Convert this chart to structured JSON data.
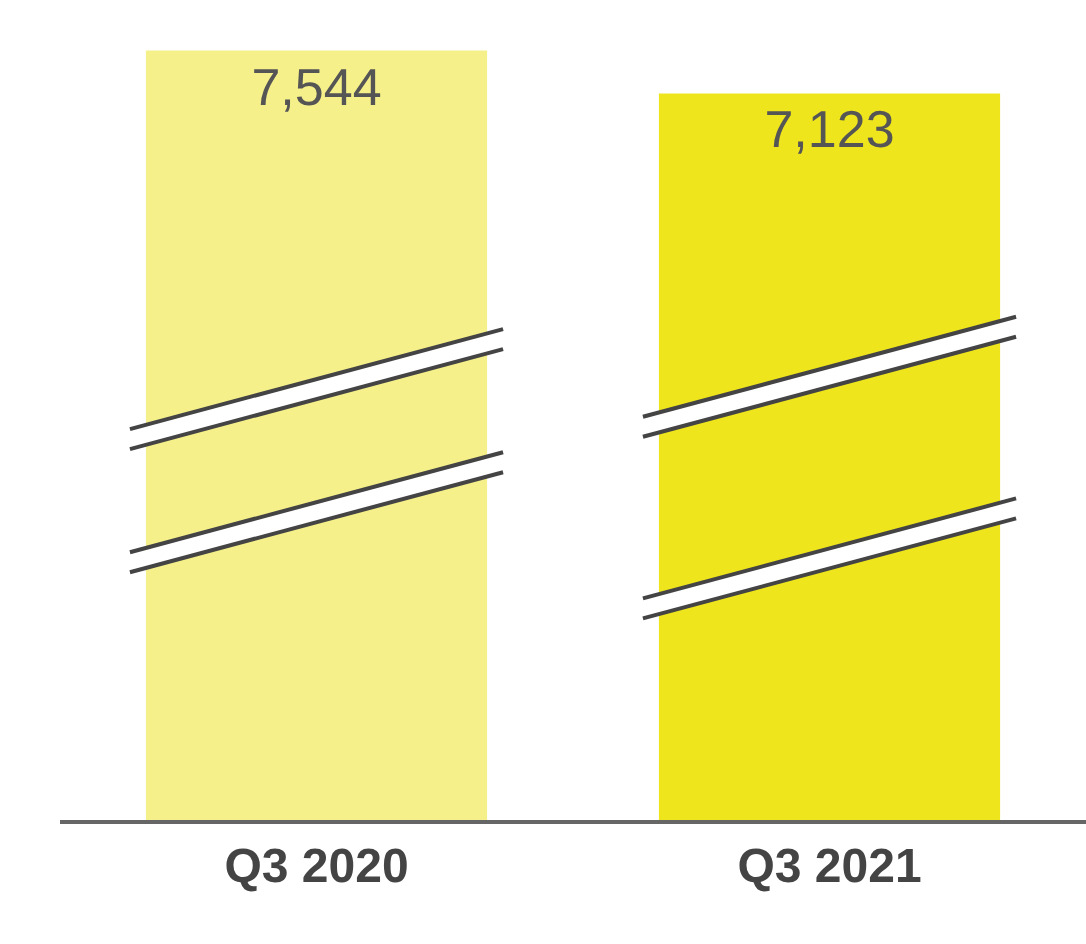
{
  "chart_data": {
    "type": "bar",
    "categories": [
      "Q3 2020",
      "Q3 2021"
    ],
    "values": [
      7544,
      7123
    ],
    "colors": [
      "#f6f08a",
      "#eee51c"
    ],
    "value_labels": [
      "7,544",
      "7,123"
    ],
    "tick_labels": "x"
  }
}
